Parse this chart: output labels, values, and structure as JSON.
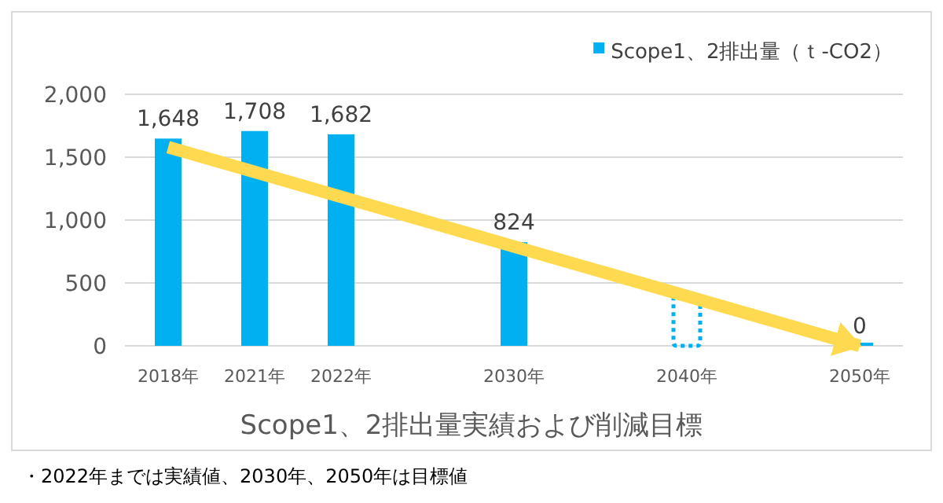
{
  "chart_data": {
    "type": "bar",
    "title": "Scope1、2排出量実績および削減目標",
    "categories": [
      "2018年",
      "2021年",
      "2022年",
      null,
      "2030年",
      null,
      "2040年",
      null,
      "2050年"
    ],
    "series": [
      {
        "name": "Scope1、2排出量（ｔ-CO2）",
        "color": "#00b0f0",
        "values": [
          1648,
          1708,
          1682,
          null,
          824,
          null,
          null,
          null,
          0
        ],
        "value_labels": [
          "1,648",
          "1,708",
          "1,682",
          null,
          "824",
          null,
          null,
          null,
          "0"
        ]
      },
      {
        "color": "#00b0f0",
        "values": [
          null,
          null,
          null,
          null,
          null,
          null,
          400,
          null,
          null
        ],
        "line_style": "dotted"
      },
      {
        "type": "line",
        "color": "#ffd94f",
        "x": [
          "2018年",
          "2050年"
        ],
        "values": [
          1580,
          0
        ]
      }
    ],
    "ylim": [
      0,
      2000
    ],
    "yticks": [
      0,
      500,
      {
        "value": 1000,
        "label": "1,000"
      },
      {
        "value": 1500,
        "label": "1,500"
      },
      {
        "value": 2000,
        "label": "2,000"
      }
    ],
    "grid": "y",
    "legend": "top right",
    "annotations": [
      "・2022年までは実績値、2030年、2050年は目標値"
    ]
  }
}
